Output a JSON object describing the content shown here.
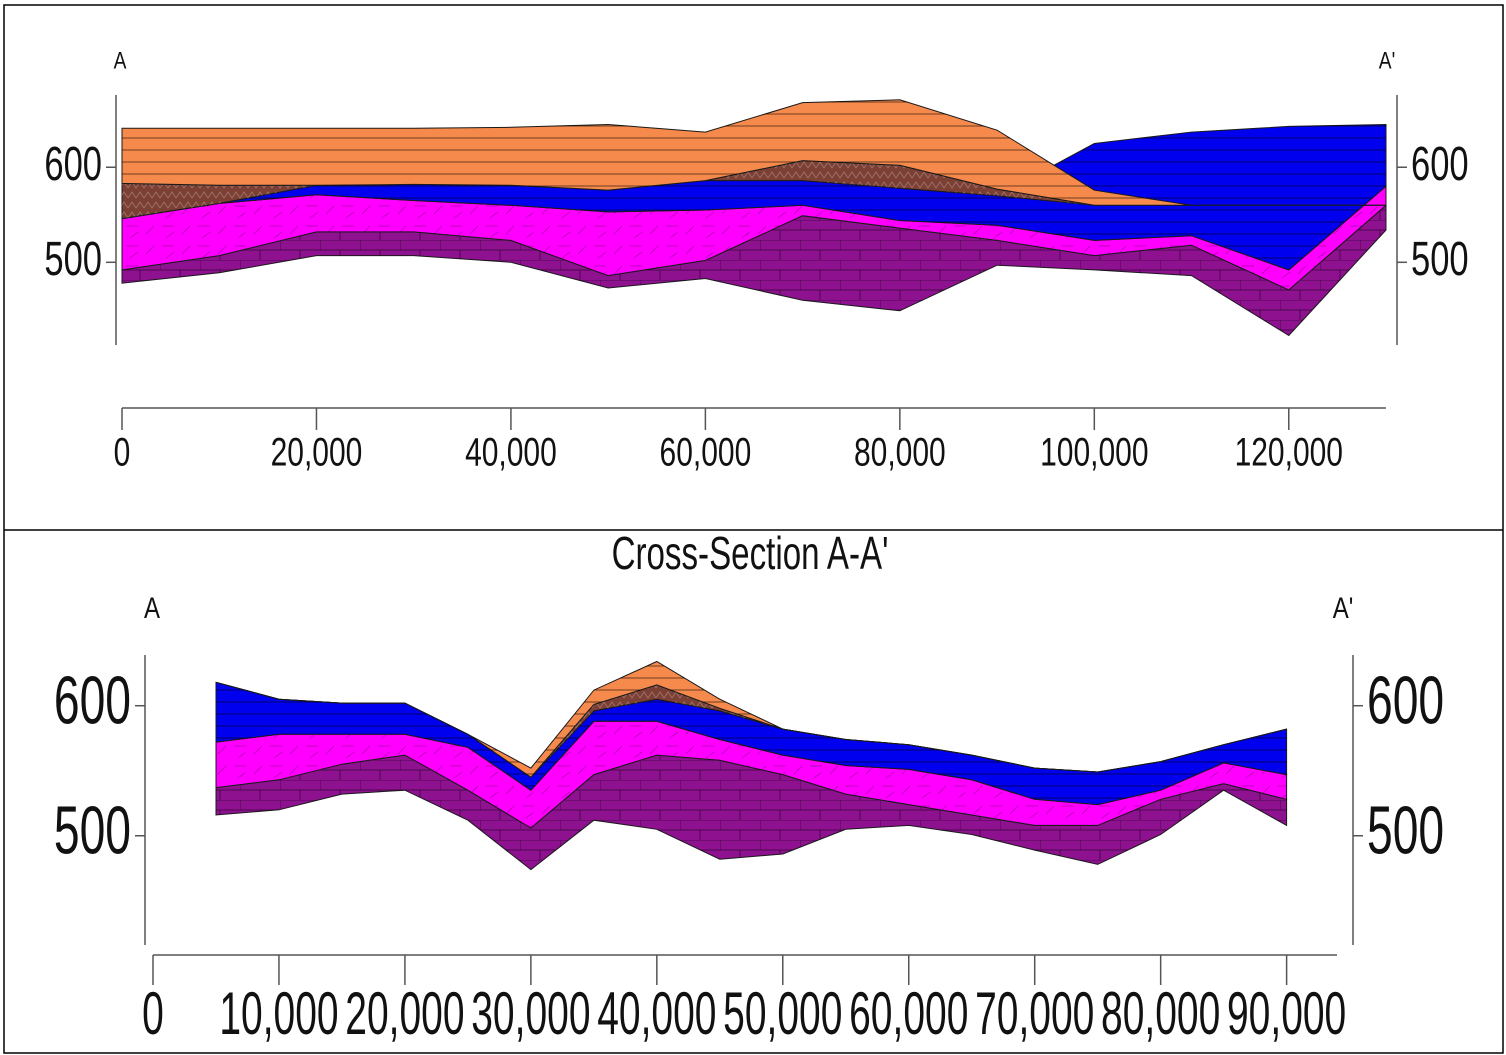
{
  "chart_data": [
    {
      "type": "area",
      "left_label": "A",
      "right_label": "A'",
      "x": [
        0,
        10000,
        20000,
        30000,
        40000,
        50000,
        60000,
        70000,
        80000,
        90000,
        100000,
        110000,
        120000,
        130000
      ],
      "xlim": [
        0,
        130000
      ],
      "xticks": [
        0,
        {
          "value": 20000,
          "label": "20,000"
        },
        {
          "value": 40000,
          "label": "40,000"
        },
        {
          "value": 60000,
          "label": "60,000"
        },
        {
          "value": 80000,
          "label": "80,000"
        },
        {
          "value": 100000,
          "label": "100,000"
        },
        {
          "value": 120000,
          "label": "120,000"
        }
      ],
      "ylim": [
        413,
        676
      ],
      "yticks": [
        500,
        600
      ],
      "series": [
        {
          "color": "#8e1190",
          "hatch": "brick",
          "top": [
            492,
            507,
            532,
            532,
            523,
            486,
            502,
            549,
            536,
            523,
            507,
            518,
            471,
            560
          ],
          "bottom": [
            478,
            489,
            507,
            507,
            500,
            473,
            483,
            460,
            449,
            497,
            492,
            486,
            423,
            534
          ]
        },
        {
          "color": "#ff00ff",
          "hatch": "dash",
          "top": [
            546,
            562,
            571,
            565,
            560,
            553,
            555,
            560,
            544,
            539,
            523,
            528,
            492,
            580
          ],
          "bottom": [
            492,
            507,
            532,
            532,
            523,
            486,
            502,
            549,
            536,
            523,
            507,
            518,
            471,
            560
          ]
        },
        {
          "color": "#0000ee",
          "hatch": "lines",
          "top": [
            546,
            562,
            581,
            582,
            581,
            576,
            586,
            586,
            578,
            570,
            625,
            637,
            643,
            645
          ],
          "bottom": [
            546,
            562,
            571,
            565,
            560,
            553,
            555,
            560,
            544,
            539,
            523,
            528,
            492,
            580
          ]
        },
        {
          "color": "#7b3f34",
          "hatch": "zigzag",
          "top": [
            583,
            581,
            581,
            582,
            581,
            576,
            586,
            607,
            602,
            577,
            560,
            560,
            560,
            560
          ],
          "bottom": [
            546,
            562,
            581,
            582,
            581,
            576,
            586,
            586,
            578,
            570,
            560,
            560,
            560,
            560
          ]
        },
        {
          "color": "#f68a4c",
          "hatch": "lines",
          "top": [
            641,
            641,
            641,
            641,
            642,
            645,
            637,
            668,
            671,
            639,
            576,
            560,
            560,
            560
          ],
          "bottom": [
            583,
            581,
            581,
            582,
            581,
            576,
            586,
            607,
            602,
            577,
            560,
            560,
            560,
            560
          ]
        }
      ]
    },
    {
      "type": "area",
      "title": "Cross-Section A-A'",
      "left_label": "A",
      "right_label": "A'",
      "x": [
        5000,
        10000,
        15000,
        20000,
        25000,
        30000,
        35000,
        40000,
        45000,
        50000,
        55000,
        60000,
        65000,
        70000,
        75000,
        80000,
        85000,
        90000
      ],
      "xlim": [
        0,
        94000
      ],
      "xticks": [
        0,
        {
          "value": 10000,
          "label": "10,000"
        },
        {
          "value": 20000,
          "label": "20,000"
        },
        {
          "value": 30000,
          "label": "30,000"
        },
        {
          "value": 40000,
          "label": "40,000"
        },
        {
          "value": 50000,
          "label": "50,000"
        },
        {
          "value": 60000,
          "label": "60,000"
        },
        {
          "value": 70000,
          "label": "70,000"
        },
        {
          "value": 80000,
          "label": "80,000"
        },
        {
          "value": 90000,
          "label": "90,000"
        }
      ],
      "ylim": [
        416,
        639
      ],
      "yticks": [
        500,
        600
      ],
      "series": [
        {
          "color": "#8e1190",
          "hatch": "brick",
          "top": [
            537,
            543,
            555,
            562,
            535,
            506,
            547,
            562,
            558,
            547,
            532,
            524,
            516,
            508,
            508,
            528,
            540,
            528
          ],
          "bottom": [
            516,
            520,
            532,
            535,
            512,
            474,
            512,
            505,
            482,
            486,
            505,
            508,
            501,
            489,
            478,
            501,
            535,
            508
          ]
        },
        {
          "color": "#ff00ff",
          "hatch": "dash",
          "top": [
            572,
            578,
            578,
            578,
            568,
            535,
            588,
            588,
            574,
            562,
            554,
            551,
            543,
            528,
            524,
            535,
            556,
            547
          ],
          "bottom": [
            537,
            543,
            555,
            562,
            535,
            506,
            547,
            562,
            558,
            547,
            532,
            524,
            516,
            508,
            508,
            528,
            540,
            528
          ]
        },
        {
          "color": "#0000ee",
          "hatch": "lines",
          "top": [
            618,
            605,
            602,
            602,
            578,
            545,
            596,
            605,
            596,
            582,
            574,
            570,
            562,
            552,
            549,
            557,
            570,
            582
          ],
          "bottom": [
            572,
            578,
            578,
            578,
            568,
            535,
            588,
            588,
            574,
            562,
            554,
            551,
            543,
            528,
            524,
            535,
            556,
            547
          ]
        },
        {
          "color": "#7b3f34",
          "hatch": "zigzag",
          "top": [
            618,
            605,
            602,
            602,
            578,
            545,
            601,
            616,
            598,
            582,
            574,
            570,
            562,
            552,
            549,
            557,
            570,
            582
          ],
          "bottom": [
            618,
            605,
            602,
            602,
            578,
            545,
            596,
            605,
            596,
            582,
            574,
            570,
            562,
            552,
            549,
            557,
            570,
            582
          ]
        },
        {
          "color": "#f68a4c",
          "hatch": "lines",
          "top": [
            618,
            605,
            602,
            602,
            578,
            552,
            612,
            634,
            605,
            582,
            574,
            570,
            562,
            552,
            549,
            557,
            570,
            582
          ],
          "bottom": [
            618,
            605,
            602,
            602,
            578,
            545,
            601,
            616,
            598,
            582,
            574,
            570,
            562,
            552,
            549,
            557,
            570,
            582
          ]
        }
      ]
    }
  ]
}
